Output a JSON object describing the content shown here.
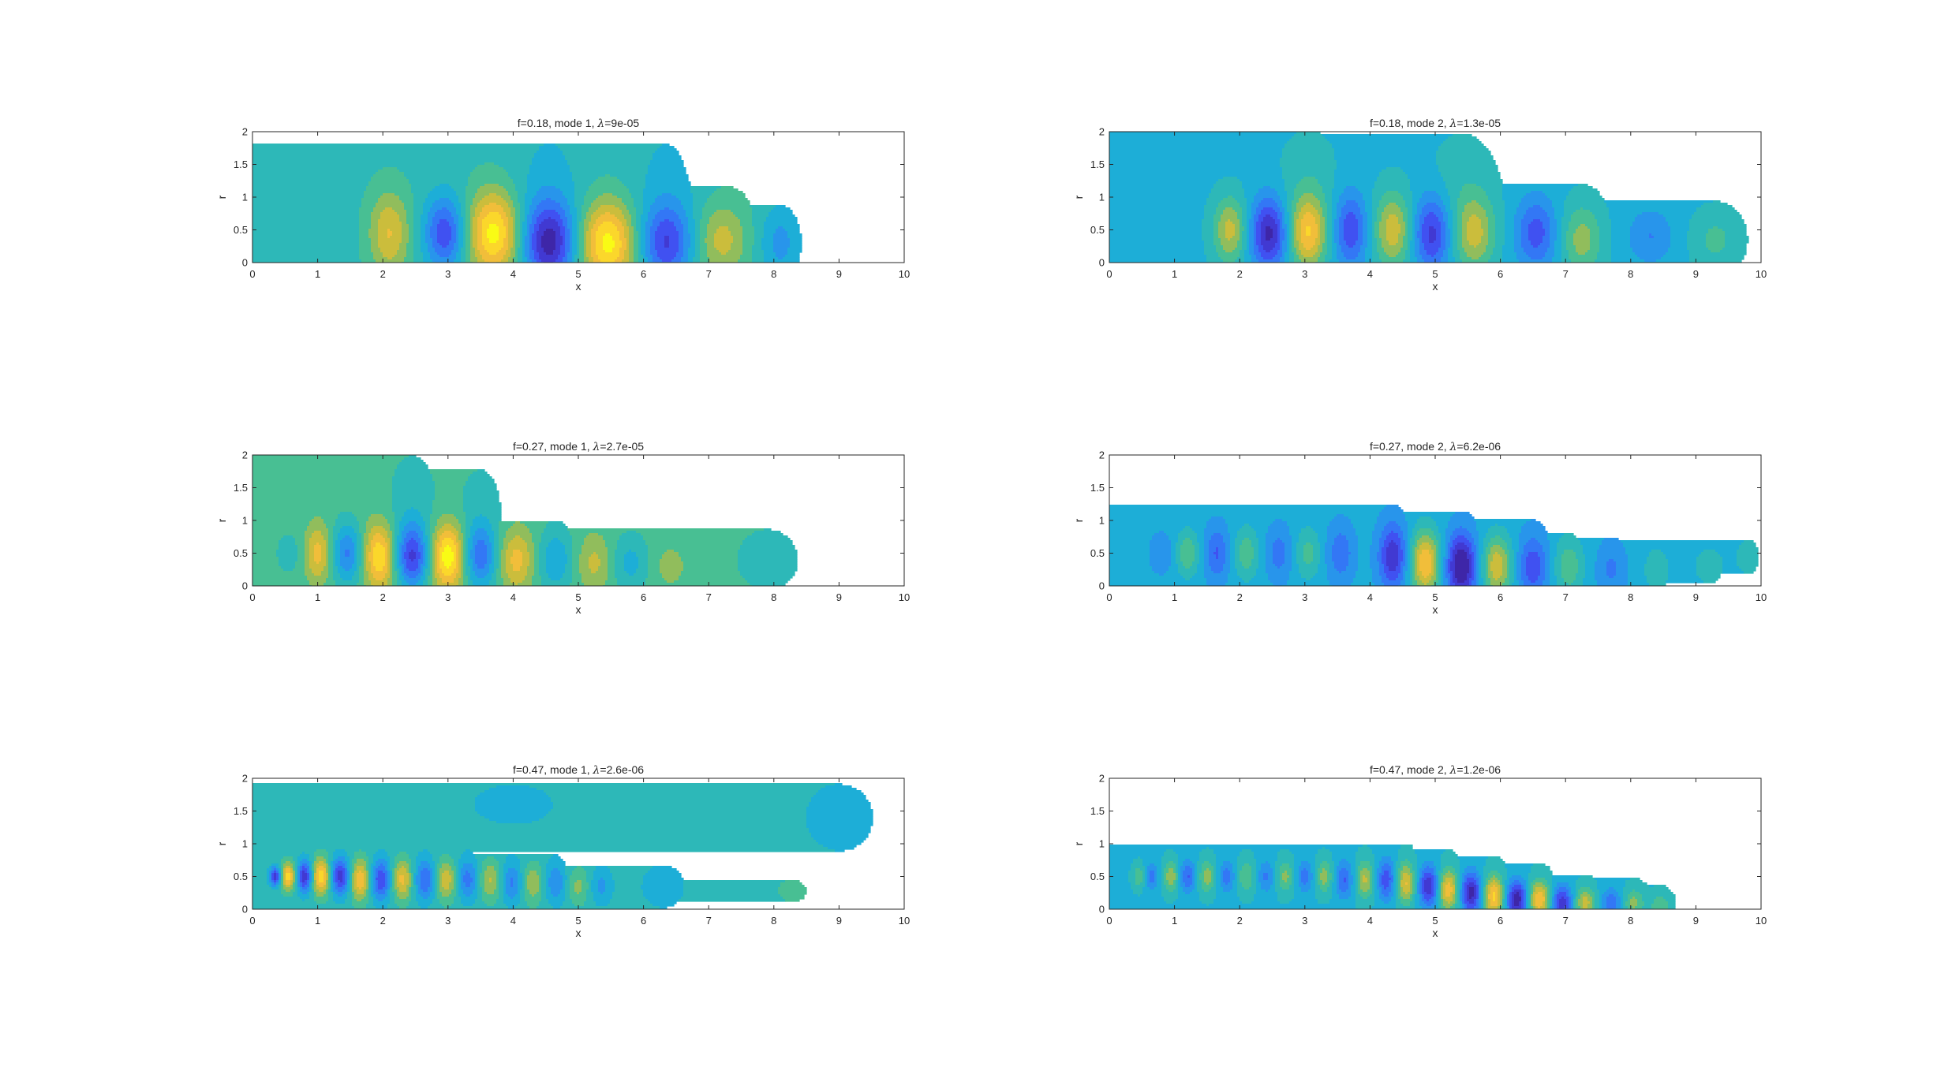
{
  "figure": {
    "colormap": [
      "#3e26a8",
      "#4346f0",
      "#2e87f7",
      "#1bb1d4",
      "#3ebf9b",
      "#bbbc3c",
      "#fcbe3a",
      "#f9fb15"
    ],
    "axes_color": "#262626"
  },
  "chart_data": [
    {
      "type": "heatmap",
      "title_prefix": "f=0.18, mode 1, ",
      "lambda_symbol": "λ",
      "title_suffix": "=9e-05",
      "xlabel": "x",
      "ylabel": "r",
      "xlim": [
        0,
        10
      ],
      "ylim": [
        0,
        2
      ],
      "xticks": [
        "0",
        "1",
        "2",
        "3",
        "4",
        "5",
        "6",
        "7",
        "8",
        "9",
        "10"
      ],
      "yticks": [
        "0",
        "0.5",
        "1",
        "1.5",
        "2"
      ],
      "background_level": 0.52,
      "blobs": [
        {
          "x": 0.9,
          "r": 0.55,
          "v": -0.12,
          "sx": 0.3,
          "sr": 0.5
        },
        {
          "x": 2.1,
          "r": 0.45,
          "v": 0.55,
          "sx": 0.22,
          "sr": 0.45
        },
        {
          "x": 2.95,
          "r": 0.45,
          "v": -0.75,
          "sx": 0.22,
          "sr": 0.4
        },
        {
          "x": 3.7,
          "r": 0.45,
          "v": 0.95,
          "sx": 0.28,
          "sr": 0.45
        },
        {
          "x": 4.55,
          "r": 0.3,
          "v": -1.0,
          "sx": 0.28,
          "sr": 0.45
        },
        {
          "x": 5.45,
          "r": 0.3,
          "v": 0.95,
          "sx": 0.3,
          "sr": 0.45
        },
        {
          "x": 6.35,
          "r": 0.3,
          "v": -0.75,
          "sx": 0.28,
          "sr": 0.42
        },
        {
          "x": 7.2,
          "r": 0.35,
          "v": 0.45,
          "sx": 0.28,
          "sr": 0.4
        },
        {
          "x": 8.1,
          "r": 0.3,
          "v": -0.35,
          "sx": 0.22,
          "sr": 0.4
        },
        {
          "x": 4.55,
          "r": 1.3,
          "v": -0.15,
          "sx": 0.4,
          "sr": 0.8
        },
        {
          "x": 6.35,
          "r": 1.3,
          "v": -0.15,
          "sx": 0.4,
          "sr": 0.8
        }
      ]
    },
    {
      "type": "heatmap",
      "title_prefix": "f=0.18, mode 2, ",
      "lambda_symbol": "λ",
      "title_suffix": "=1.3e-05",
      "xlabel": "x",
      "ylabel": "r",
      "xlim": [
        0,
        10
      ],
      "ylim": [
        0,
        2
      ],
      "xticks": [
        "0",
        "1",
        "2",
        "3",
        "4",
        "5",
        "6",
        "7",
        "8",
        "9",
        "10"
      ],
      "yticks": [
        "0",
        "0.5",
        "1",
        "1.5",
        "2"
      ],
      "background_level": 0.44,
      "blobs": [
        {
          "x": 0.6,
          "r": 0.5,
          "v": -0.1,
          "sx": 0.25,
          "sr": 0.3
        },
        {
          "x": 1.85,
          "r": 0.5,
          "v": 0.6,
          "sx": 0.18,
          "sr": 0.35
        },
        {
          "x": 2.45,
          "r": 0.45,
          "v": -0.85,
          "sx": 0.2,
          "sr": 0.38
        },
        {
          "x": 3.05,
          "r": 0.45,
          "v": 0.85,
          "sx": 0.2,
          "sr": 0.38
        },
        {
          "x": 3.7,
          "r": 0.5,
          "v": -0.6,
          "sx": 0.18,
          "sr": 0.4
        },
        {
          "x": 4.35,
          "r": 0.5,
          "v": 0.65,
          "sx": 0.2,
          "sr": 0.4
        },
        {
          "x": 4.95,
          "r": 0.45,
          "v": -0.7,
          "sx": 0.2,
          "sr": 0.4
        },
        {
          "x": 5.6,
          "r": 0.45,
          "v": 0.6,
          "sx": 0.22,
          "sr": 0.4
        },
        {
          "x": 6.55,
          "r": 0.45,
          "v": -0.55,
          "sx": 0.22,
          "sr": 0.38
        },
        {
          "x": 7.25,
          "r": 0.35,
          "v": 0.45,
          "sx": 0.22,
          "sr": 0.38
        },
        {
          "x": 8.3,
          "r": 0.4,
          "v": -0.3,
          "sx": 0.25,
          "sr": 0.3
        },
        {
          "x": 9.3,
          "r": 0.35,
          "v": 0.25,
          "sx": 0.25,
          "sr": 0.3
        },
        {
          "x": 3.05,
          "r": 1.2,
          "v": 0.15,
          "sx": 0.3,
          "sr": 0.5
        },
        {
          "x": 5.4,
          "r": 1.2,
          "v": 0.12,
          "sx": 0.35,
          "sr": 0.5
        }
      ]
    },
    {
      "type": "heatmap",
      "title_prefix": "f=0.27, mode 1, ",
      "lambda_symbol": "λ",
      "title_suffix": "=2.7e-05",
      "xlabel": "x",
      "ylabel": "r",
      "xlim": [
        0,
        10
      ],
      "ylim": [
        0,
        2
      ],
      "xticks": [
        "0",
        "1",
        "2",
        "3",
        "4",
        "5",
        "6",
        "7",
        "8",
        "9",
        "10"
      ],
      "yticks": [
        "0",
        "0.5",
        "1",
        "1.5",
        "2"
      ],
      "background_level": 0.58,
      "blobs": [
        {
          "x": 0.55,
          "r": 0.5,
          "v": -0.15,
          "sx": 0.15,
          "sr": 0.25
        },
        {
          "x": 1.0,
          "r": 0.5,
          "v": 0.5,
          "sx": 0.13,
          "sr": 0.3
        },
        {
          "x": 1.45,
          "r": 0.5,
          "v": -0.6,
          "sx": 0.15,
          "sr": 0.32
        },
        {
          "x": 1.95,
          "r": 0.45,
          "v": 0.75,
          "sx": 0.16,
          "sr": 0.35
        },
        {
          "x": 2.45,
          "r": 0.45,
          "v": -0.9,
          "sx": 0.17,
          "sr": 0.35
        },
        {
          "x": 3.0,
          "r": 0.45,
          "v": 0.9,
          "sx": 0.17,
          "sr": 0.35
        },
        {
          "x": 3.5,
          "r": 0.45,
          "v": -0.65,
          "sx": 0.17,
          "sr": 0.35
        },
        {
          "x": 4.05,
          "r": 0.4,
          "v": 0.5,
          "sx": 0.18,
          "sr": 0.33
        },
        {
          "x": 4.65,
          "r": 0.4,
          "v": -0.4,
          "sx": 0.18,
          "sr": 0.33
        },
        {
          "x": 5.25,
          "r": 0.35,
          "v": 0.3,
          "sx": 0.18,
          "sr": 0.3
        },
        {
          "x": 5.8,
          "r": 0.35,
          "v": -0.3,
          "sx": 0.2,
          "sr": 0.3
        },
        {
          "x": 6.4,
          "r": 0.3,
          "v": 0.15,
          "sx": 0.2,
          "sr": 0.25
        },
        {
          "x": 7.9,
          "r": 0.4,
          "v": -0.15,
          "sx": 0.4,
          "sr": 0.4
        },
        {
          "x": 2.45,
          "r": 1.3,
          "v": -0.15,
          "sx": 0.3,
          "sr": 0.6
        },
        {
          "x": 3.5,
          "r": 1.2,
          "v": -0.12,
          "sx": 0.3,
          "sr": 0.6
        }
      ]
    },
    {
      "type": "heatmap",
      "title_prefix": "f=0.27, mode 2, ",
      "lambda_symbol": "λ",
      "title_suffix": "=6.2e-06",
      "xlabel": "x",
      "ylabel": "r",
      "xlim": [
        0,
        10
      ],
      "ylim": [
        0,
        2
      ],
      "xticks": [
        "0",
        "1",
        "2",
        "3",
        "4",
        "5",
        "6",
        "7",
        "8",
        "9",
        "10"
      ],
      "yticks": [
        "0",
        "0.5",
        "1",
        "1.5",
        "2"
      ],
      "background_level": 0.4,
      "blobs": [
        {
          "x": 0.8,
          "r": 0.5,
          "v": -0.2,
          "sx": 0.12,
          "sr": 0.2
        },
        {
          "x": 1.2,
          "r": 0.5,
          "v": 0.45,
          "sx": 0.12,
          "sr": 0.25
        },
        {
          "x": 1.65,
          "r": 0.5,
          "v": -0.4,
          "sx": 0.13,
          "sr": 0.28
        },
        {
          "x": 2.1,
          "r": 0.5,
          "v": 0.4,
          "sx": 0.13,
          "sr": 0.28
        },
        {
          "x": 2.6,
          "r": 0.5,
          "v": -0.3,
          "sx": 0.13,
          "sr": 0.28
        },
        {
          "x": 3.05,
          "r": 0.5,
          "v": 0.35,
          "sx": 0.13,
          "sr": 0.28
        },
        {
          "x": 3.55,
          "r": 0.5,
          "v": -0.35,
          "sx": 0.14,
          "sr": 0.3
        },
        {
          "x": 4.35,
          "r": 0.45,
          "v": -0.7,
          "sx": 0.15,
          "sr": 0.35
        },
        {
          "x": 4.85,
          "r": 0.35,
          "v": 0.95,
          "sx": 0.16,
          "sr": 0.35
        },
        {
          "x": 5.4,
          "r": 0.3,
          "v": -0.95,
          "sx": 0.16,
          "sr": 0.35
        },
        {
          "x": 5.95,
          "r": 0.3,
          "v": 0.75,
          "sx": 0.16,
          "sr": 0.33
        },
        {
          "x": 6.5,
          "r": 0.3,
          "v": -0.5,
          "sx": 0.16,
          "sr": 0.33
        },
        {
          "x": 7.05,
          "r": 0.3,
          "v": 0.4,
          "sx": 0.16,
          "sr": 0.33
        },
        {
          "x": 7.7,
          "r": 0.25,
          "v": -0.25,
          "sx": 0.15,
          "sr": 0.28
        },
        {
          "x": 8.4,
          "r": 0.25,
          "v": 0.25,
          "sx": 0.15,
          "sr": 0.25
        },
        {
          "x": 9.2,
          "r": 0.3,
          "v": 0.2,
          "sx": 0.2,
          "sr": 0.25
        },
        {
          "x": 9.8,
          "r": 0.45,
          "v": 0.2,
          "sx": 0.15,
          "sr": 0.25
        }
      ]
    },
    {
      "type": "heatmap",
      "title_prefix": "f=0.47, mode 1, ",
      "lambda_symbol": "λ",
      "title_suffix": "=2.6e-06",
      "xlabel": "x",
      "ylabel": "r",
      "xlim": [
        0,
        10
      ],
      "ylim": [
        0,
        2
      ],
      "xticks": [
        "0",
        "1",
        "2",
        "3",
        "4",
        "5",
        "6",
        "7",
        "8",
        "9",
        "10"
      ],
      "yticks": [
        "0",
        "0.5",
        "1",
        "1.5",
        "2"
      ],
      "background_level": 0.5,
      "blobs": [
        {
          "x": 0.35,
          "r": 0.5,
          "v": -0.95,
          "sx": 0.06,
          "sr": 0.1
        },
        {
          "x": 0.55,
          "r": 0.5,
          "v": 0.85,
          "sx": 0.08,
          "sr": 0.15
        },
        {
          "x": 0.8,
          "r": 0.5,
          "v": -0.9,
          "sx": 0.09,
          "sr": 0.17
        },
        {
          "x": 1.05,
          "r": 0.5,
          "v": 0.9,
          "sx": 0.1,
          "sr": 0.2
        },
        {
          "x": 1.35,
          "r": 0.5,
          "v": -0.85,
          "sx": 0.11,
          "sr": 0.2
        },
        {
          "x": 1.65,
          "r": 0.45,
          "v": 0.75,
          "sx": 0.11,
          "sr": 0.22
        },
        {
          "x": 1.97,
          "r": 0.45,
          "v": -0.75,
          "sx": 0.11,
          "sr": 0.22
        },
        {
          "x": 2.3,
          "r": 0.45,
          "v": 0.65,
          "sx": 0.11,
          "sr": 0.22
        },
        {
          "x": 2.65,
          "r": 0.45,
          "v": -0.6,
          "sx": 0.12,
          "sr": 0.22
        },
        {
          "x": 2.97,
          "r": 0.45,
          "v": 0.55,
          "sx": 0.12,
          "sr": 0.22
        },
        {
          "x": 3.3,
          "r": 0.45,
          "v": -0.5,
          "sx": 0.12,
          "sr": 0.22
        },
        {
          "x": 3.65,
          "r": 0.45,
          "v": 0.45,
          "sx": 0.12,
          "sr": 0.22
        },
        {
          "x": 3.98,
          "r": 0.4,
          "v": -0.45,
          "sx": 0.12,
          "sr": 0.22
        },
        {
          "x": 4.3,
          "r": 0.4,
          "v": 0.4,
          "sx": 0.12,
          "sr": 0.22
        },
        {
          "x": 4.65,
          "r": 0.4,
          "v": -0.4,
          "sx": 0.12,
          "sr": 0.22
        },
        {
          "x": 5.0,
          "r": 0.35,
          "v": 0.3,
          "sx": 0.12,
          "sr": 0.2
        },
        {
          "x": 5.35,
          "r": 0.35,
          "v": -0.3,
          "sx": 0.12,
          "sr": 0.2
        },
        {
          "x": 6.3,
          "r": 0.35,
          "v": -0.15,
          "sx": 0.3,
          "sr": 0.3
        },
        {
          "x": 8.3,
          "r": 0.3,
          "v": 0.12,
          "sx": 0.3,
          "sr": 0.25
        },
        {
          "x": 4.0,
          "r": 1.6,
          "v": -0.1,
          "sx": 1.0,
          "sr": 0.5
        },
        {
          "x": 9.0,
          "r": 1.4,
          "v": -0.12,
          "sx": 0.6,
          "sr": 0.6
        }
      ]
    },
    {
      "type": "heatmap",
      "title_prefix": "f=0.47, mode 2, ",
      "lambda_symbol": "λ",
      "title_suffix": "=1.2e-06",
      "xlabel": "x",
      "ylabel": "r",
      "xlim": [
        0,
        10
      ],
      "ylim": [
        0,
        2
      ],
      "xticks": [
        "0",
        "1",
        "2",
        "3",
        "4",
        "5",
        "6",
        "7",
        "8",
        "9",
        "10"
      ],
      "yticks": [
        "0",
        "0.5",
        "1",
        "1.5",
        "2"
      ],
      "background_level": 0.45,
      "blobs": [
        {
          "x": 0.45,
          "r": 0.5,
          "v": 0.35,
          "sx": 0.06,
          "sr": 0.12
        },
        {
          "x": 0.65,
          "r": 0.5,
          "v": -0.4,
          "sx": 0.07,
          "sr": 0.14
        },
        {
          "x": 0.95,
          "r": 0.5,
          "v": 0.5,
          "sx": 0.08,
          "sr": 0.16
        },
        {
          "x": 1.2,
          "r": 0.5,
          "v": -0.5,
          "sx": 0.09,
          "sr": 0.17
        },
        {
          "x": 1.5,
          "r": 0.5,
          "v": 0.45,
          "sx": 0.09,
          "sr": 0.17
        },
        {
          "x": 1.8,
          "r": 0.5,
          "v": -0.4,
          "sx": 0.09,
          "sr": 0.17
        },
        {
          "x": 2.1,
          "r": 0.5,
          "v": 0.35,
          "sx": 0.09,
          "sr": 0.17
        },
        {
          "x": 2.4,
          "r": 0.5,
          "v": -0.35,
          "sx": 0.09,
          "sr": 0.17
        },
        {
          "x": 2.7,
          "r": 0.5,
          "v": 0.4,
          "sx": 0.09,
          "sr": 0.17
        },
        {
          "x": 3.0,
          "r": 0.5,
          "v": -0.4,
          "sx": 0.09,
          "sr": 0.17
        },
        {
          "x": 3.3,
          "r": 0.5,
          "v": 0.45,
          "sx": 0.09,
          "sr": 0.17
        },
        {
          "x": 3.6,
          "r": 0.45,
          "v": -0.5,
          "sx": 0.1,
          "sr": 0.2
        },
        {
          "x": 3.92,
          "r": 0.45,
          "v": 0.55,
          "sx": 0.1,
          "sr": 0.2
        },
        {
          "x": 4.25,
          "r": 0.45,
          "v": -0.6,
          "sx": 0.1,
          "sr": 0.22
        },
        {
          "x": 4.55,
          "r": 0.4,
          "v": 0.7,
          "sx": 0.1,
          "sr": 0.22
        },
        {
          "x": 4.9,
          "r": 0.35,
          "v": -0.8,
          "sx": 0.11,
          "sr": 0.22
        },
        {
          "x": 5.2,
          "r": 0.3,
          "v": 0.8,
          "sx": 0.11,
          "sr": 0.22
        },
        {
          "x": 5.55,
          "r": 0.25,
          "v": -0.9,
          "sx": 0.11,
          "sr": 0.22
        },
        {
          "x": 5.9,
          "r": 0.2,
          "v": 0.9,
          "sx": 0.11,
          "sr": 0.22
        },
        {
          "x": 6.25,
          "r": 0.15,
          "v": -0.95,
          "sx": 0.11,
          "sr": 0.2
        },
        {
          "x": 6.6,
          "r": 0.15,
          "v": 0.85,
          "sx": 0.11,
          "sr": 0.2
        },
        {
          "x": 6.95,
          "r": 0.1,
          "v": -0.75,
          "sx": 0.11,
          "sr": 0.18
        },
        {
          "x": 7.3,
          "r": 0.1,
          "v": 0.6,
          "sx": 0.11,
          "sr": 0.16
        },
        {
          "x": 7.7,
          "r": 0.1,
          "v": -0.45,
          "sx": 0.11,
          "sr": 0.15
        },
        {
          "x": 8.05,
          "r": 0.1,
          "v": 0.4,
          "sx": 0.11,
          "sr": 0.15
        },
        {
          "x": 8.45,
          "r": 0.05,
          "v": 0.35,
          "sx": 0.1,
          "sr": 0.13
        }
      ]
    }
  ]
}
